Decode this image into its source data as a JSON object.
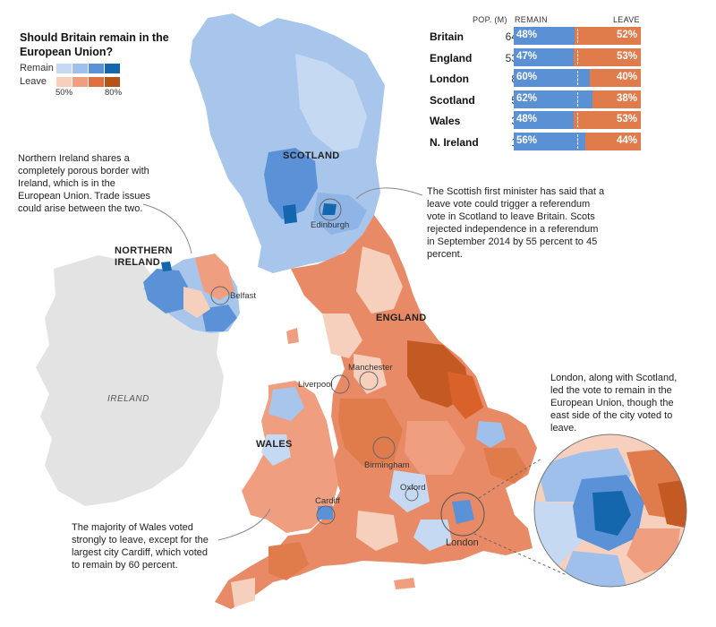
{
  "title": "Should Britain remain in the European Union?",
  "legend": {
    "remain_label": "Remain",
    "leave_label": "Leave",
    "low_tick": "50%",
    "high_tick": "80%",
    "remain_colors": [
      "#c6d9f2",
      "#9fc0ea",
      "#5b91d6",
      "#1466ad"
    ],
    "leave_colors": [
      "#f6cfbd",
      "#ef9f80",
      "#e0703f",
      "#b35317"
    ]
  },
  "table": {
    "headers": {
      "pop": "POP. (M)",
      "remain": "REMAIN",
      "leave": "LEAVE"
    },
    "rows": [
      {
        "name": "Britain",
        "pop": "64.1",
        "remain": 48,
        "leave": 52,
        "remain_label": "48%",
        "leave_label": "52%"
      },
      {
        "name": "England",
        "pop": "53.0",
        "remain": 47,
        "leave": 53,
        "remain_label": "47%",
        "leave_label": "53%"
      },
      {
        "name": "London",
        "pop": "8.5",
        "remain": 60,
        "leave": 40,
        "remain_label": "60%",
        "leave_label": "40%"
      },
      {
        "name": "Scotland",
        "pop": "5.3",
        "remain": 62,
        "leave": 38,
        "remain_label": "62%",
        "leave_label": "38%"
      },
      {
        "name": "Wales",
        "pop": "3.0",
        "remain": 48,
        "leave": 53,
        "remain_label": "48%",
        "leave_label": "53%"
      },
      {
        "name": "N. Ireland",
        "pop": "1.8",
        "remain": 56,
        "leave": 44,
        "remain_label": "56%",
        "leave_label": "44%"
      }
    ]
  },
  "regions": {
    "scotland": "SCOTLAND",
    "england": "ENGLAND",
    "wales": "WALES",
    "northern_ireland": "NORTHERN IRELAND",
    "ireland": "IRELAND"
  },
  "cities": {
    "edinburgh": "Edinburgh",
    "belfast": "Belfast",
    "liverpool": "Liverpool",
    "manchester": "Manchester",
    "birmingham": "Birmingham",
    "oxford": "Oxford",
    "cardiff": "Cardiff",
    "london": "London"
  },
  "notes": {
    "northern_ireland": "Northern Ireland shares a completely porous border with Ireland, which is in the European Union. Trade issues could arise between the two.",
    "scotland": "The Scottish first minister has said that a leave vote could trigger a referendum vote in Scotland to leave Britain. Scots rejected independence in a referendum in September 2014 by 55 percent to 45 percent.",
    "london": "London, along with Scotland, led the vote to remain in the European Union, though the east side of the city voted to leave.",
    "wales": "The majority of Wales voted strongly to leave, except for the largest city Cardiff, which voted to remain by 60 percent."
  }
}
